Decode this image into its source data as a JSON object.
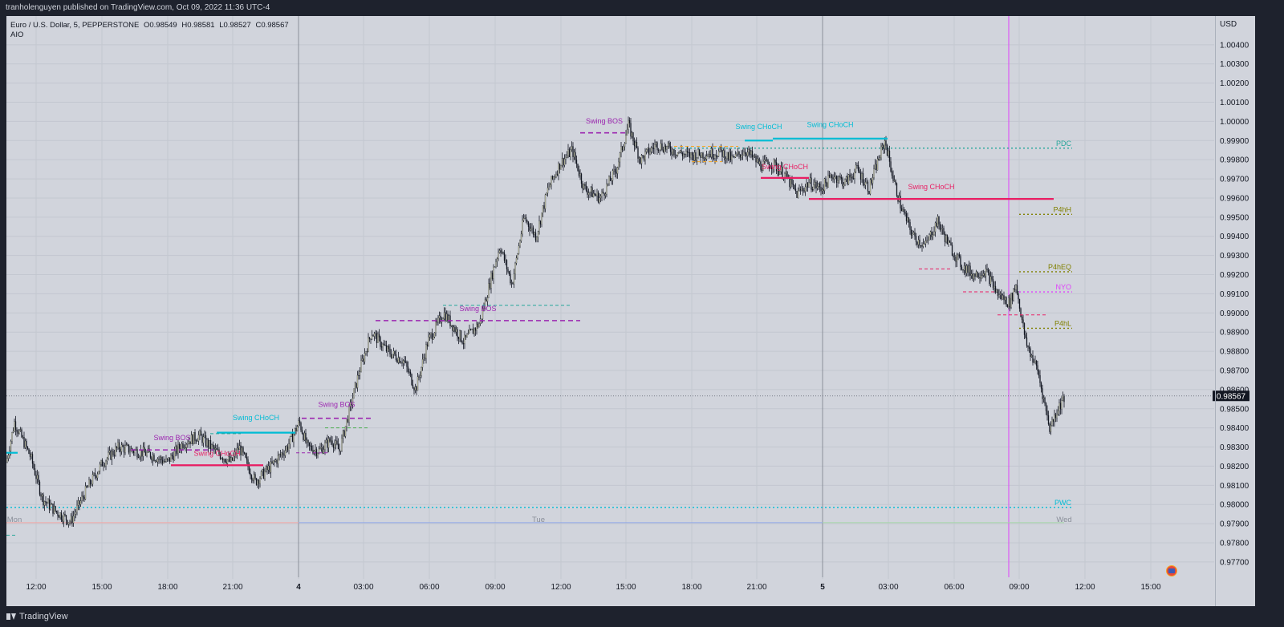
{
  "header": {
    "publisher_text": "tranholenguyen published on TradingView.com, Oct 09, 2022 11:36 UTC-4"
  },
  "legend": {
    "symbol": "Euro / U.S. Dollar, 5, PEPPERSTONE",
    "open": "O0.98549",
    "high": "H0.98581",
    "low": "L0.98527",
    "close": "C0.98567",
    "indicator": "AIO"
  },
  "footer": {
    "brand_label": "TradingView"
  },
  "colors": {
    "background": "#d1d4dc",
    "candle": "#131722",
    "swing_bos": "#9c27b0",
    "swing_choch": "#00bcd4",
    "choch_red": "#e91e63",
    "pdc": "#26a69a",
    "p4h": "#808000",
    "nyo": "#e040fb",
    "pwc": "#00bcd4",
    "current_price_bg": "#131722"
  },
  "chart_data": {
    "type": "candlestick",
    "price_axis": {
      "currency": "USD",
      "ylim": [
        0.9762,
        1.0055
      ],
      "ticks": [
        "1.00400",
        "1.00300",
        "1.00200",
        "1.00100",
        "1.00000",
        "0.99900",
        "0.99800",
        "0.99700",
        "0.99600",
        "0.99500",
        "0.99400",
        "0.99300",
        "0.99200",
        "0.99100",
        "0.99000",
        "0.98900",
        "0.98800",
        "0.98700",
        "0.98600",
        "0.98500",
        "0.98400",
        "0.98300",
        "0.98200",
        "0.98100",
        "0.98000",
        "0.97900",
        "0.97800",
        "0.97700"
      ],
      "current_price": "0.98567"
    },
    "time_axis": {
      "ticks": [
        "12:00",
        "15:00",
        "18:00",
        "21:00",
        "4",
        "03:00",
        "06:00",
        "09:00",
        "12:00",
        "15:00",
        "18:00",
        "21:00",
        "5",
        "03:00",
        "06:00",
        "09:00",
        "12:00",
        "15:00"
      ],
      "day_labels": [
        "Mon",
        "Tue",
        "Wed"
      ]
    },
    "price_path": [
      [
        0.9822,
        0
      ],
      [
        0.9843,
        10
      ],
      [
        0.9825,
        30
      ],
      [
        0.9803,
        45
      ],
      [
        0.9797,
        60
      ],
      [
        0.9791,
        80
      ],
      [
        0.9808,
        100
      ],
      [
        0.9822,
        120
      ],
      [
        0.983,
        140
      ],
      [
        0.9828,
        160
      ],
      [
        0.9826,
        180
      ],
      [
        0.9822,
        200
      ],
      [
        0.9832,
        220
      ],
      [
        0.9836,
        240
      ],
      [
        0.9828,
        260
      ],
      [
        0.9822,
        280
      ],
      [
        0.983,
        290
      ],
      [
        0.9812,
        310
      ],
      [
        0.982,
        330
      ],
      [
        0.983,
        350
      ],
      [
        0.9843,
        365
      ],
      [
        0.983,
        375
      ],
      [
        0.9828,
        390
      ],
      [
        0.9834,
        405
      ],
      [
        0.9828,
        415
      ],
      [
        0.9845,
        425
      ],
      [
        0.987,
        440
      ],
      [
        0.989,
        455
      ],
      [
        0.988,
        475
      ],
      [
        0.9875,
        495
      ],
      [
        0.986,
        510
      ],
      [
        0.9885,
        525
      ],
      [
        0.99,
        545
      ],
      [
        0.9885,
        570
      ],
      [
        0.9895,
        590
      ],
      [
        0.992,
        605
      ],
      [
        0.9935,
        615
      ],
      [
        0.9915,
        630
      ],
      [
        0.995,
        645
      ],
      [
        0.994,
        660
      ],
      [
        0.9965,
        675
      ],
      [
        0.9978,
        690
      ],
      [
        0.9985,
        705
      ],
      [
        0.9965,
        720
      ],
      [
        0.996,
        740
      ],
      [
        0.9975,
        760
      ],
      [
        0.9998,
        775
      ],
      [
        0.998,
        790
      ],
      [
        0.9988,
        810
      ],
      [
        0.9985,
        830
      ],
      [
        0.9982,
        850
      ],
      [
        0.9983,
        870
      ],
      [
        0.9984,
        890
      ],
      [
        0.998,
        905
      ],
      [
        0.9985,
        920
      ],
      [
        0.9977,
        940
      ],
      [
        0.9978,
        955
      ],
      [
        0.9972,
        970
      ],
      [
        0.9962,
        985
      ],
      [
        0.9968,
        1000
      ],
      [
        0.9965,
        1015
      ],
      [
        0.9972,
        1030
      ],
      [
        0.9968,
        1045
      ],
      [
        0.9975,
        1060
      ],
      [
        0.9965,
        1075
      ],
      [
        0.9978,
        1085
      ],
      [
        0.999,
        1095
      ],
      [
        0.997,
        1105
      ],
      [
        0.9955,
        1115
      ],
      [
        0.994,
        1130
      ],
      [
        0.9935,
        1145
      ],
      [
        0.9948,
        1160
      ],
      [
        0.9935,
        1175
      ],
      [
        0.9925,
        1190
      ],
      [
        0.992,
        1205
      ],
      [
        0.9922,
        1220
      ],
      [
        0.991,
        1235
      ],
      [
        0.9905,
        1250
      ],
      [
        0.9915,
        1258
      ],
      [
        0.9885,
        1270
      ],
      [
        0.987,
        1285
      ],
      [
        0.984,
        1300
      ],
      [
        0.985,
        1310
      ],
      [
        0.9857,
        1320
      ]
    ],
    "annotations": [
      {
        "text": "Swing BOS",
        "color": "#9c27b0",
        "price": 0.98285,
        "x_from": 155,
        "x_to": 258,
        "label_price": 0.98335,
        "style": "dash"
      },
      {
        "text": "Swing CHoCH",
        "color": "#e91e63",
        "price": 0.98205,
        "x_from": 205,
        "x_to": 320,
        "label_price": 0.98255,
        "style": "solid"
      },
      {
        "text": "Swing CHoCH",
        "color": "#00bcd4",
        "price": 0.98375,
        "x_from": 262,
        "x_to": 360,
        "label_price": 0.9844,
        "style": "solid"
      },
      {
        "text": "Swing BOS",
        "color": "#9c27b0",
        "price": 0.9845,
        "x_from": 368,
        "x_to": 455,
        "label_price": 0.9851,
        "style": "dash"
      },
      {
        "text": "Swing BOS",
        "color": "#9c27b0",
        "price": 0.9896,
        "x_from": 460,
        "x_to": 715,
        "label_price": 0.9901,
        "style": "dash"
      },
      {
        "text": "Swing BOS",
        "color": "#9c27b0",
        "price": 0.9994,
        "x_from": 715,
        "x_to": 775,
        "label_price": 0.9999,
        "style": "dash"
      },
      {
        "text": "Swing CHoCH",
        "color": "#00bcd4",
        "price": 0.999,
        "x_from": 920,
        "x_to": 955,
        "label_price": 0.9996,
        "style": "solid"
      },
      {
        "text": "Swing CHoCH",
        "color": "#00bcd4",
        "price": 0.9991,
        "x_from": 955,
        "x_to": 1098,
        "label_price": 0.9997,
        "style": "solid"
      },
      {
        "text": "Swing CHoCH",
        "color": "#e91e63",
        "price": 0.99705,
        "x_from": 940,
        "x_to": 1000,
        "label_price": 0.9975,
        "style": "solid"
      },
      {
        "text": "Swing CHoCH",
        "color": "#e91e63",
        "price": 0.99595,
        "x_from": 1000,
        "x_to": 1305,
        "label_price": 0.99645,
        "style": "solid"
      }
    ],
    "levels": [
      {
        "text": "PDC",
        "color": "#26a69a",
        "price": 0.9986
      },
      {
        "text": "P4hH",
        "color": "#808000",
        "price": 0.99515
      },
      {
        "text": "P4hEQ",
        "color": "#808000",
        "price": 0.99215
      },
      {
        "text": "NYO",
        "color": "#e040fb",
        "price": 0.9911
      },
      {
        "text": "P4hL",
        "color": "#808000",
        "price": 0.9892
      },
      {
        "text": "PWC",
        "color": "#00bcd4",
        "price": 0.97985
      }
    ]
  }
}
